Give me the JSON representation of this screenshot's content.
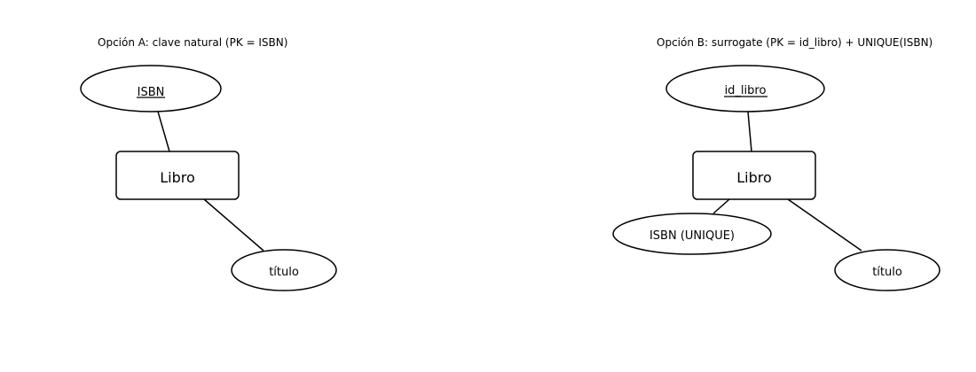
{
  "colors": {
    "stroke": "#000000",
    "fill": "#ffffff",
    "background": "#ffffff"
  },
  "option_a": {
    "title": "Opción A: clave natural (PK = ISBN)",
    "entity": "Libro",
    "pk_attribute": "ISBN",
    "attribute_titulo": "título"
  },
  "option_b": {
    "title": "Opción B: surrogate (PK = id_libro) + UNIQUE(ISBN)",
    "entity": "Libro",
    "pk_attribute": "id_libro",
    "attribute_isbn": "ISBN (UNIQUE)",
    "attribute_titulo": "título"
  }
}
